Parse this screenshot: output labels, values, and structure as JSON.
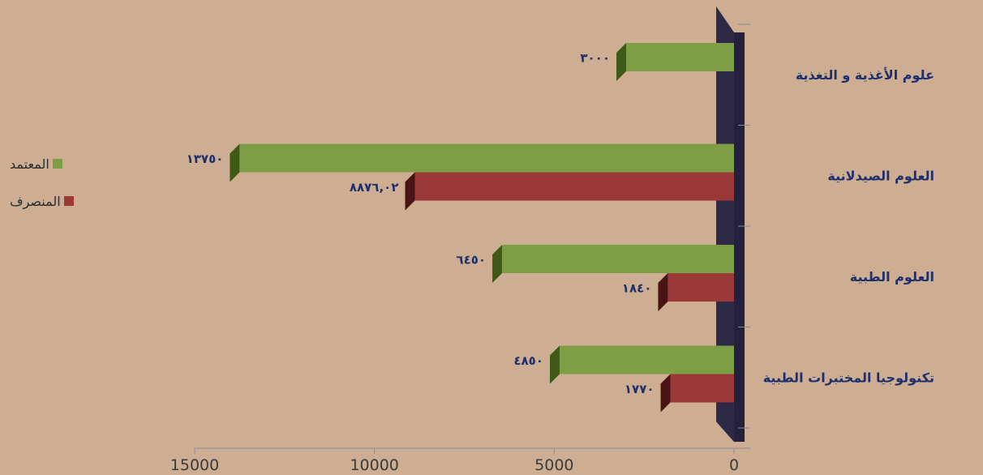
{
  "colors": {
    "approved": "#7e9e46",
    "approved_dark": "#4d6a22",
    "approved_side": "#3f5a16",
    "spent": "#9b3838",
    "spent_dark": "#5e1d1d",
    "spent_side": "#4a1414",
    "wall": "#25213d",
    "axis": "#8a8a9a"
  },
  "chart_data": {
    "type": "bar",
    "orientation": "horizontal",
    "categories": [
      "علوم الأغذية و التغذية",
      "العلوم الصيدلانية",
      "العلوم الطبية",
      "تكنولوجيا المختبرات الطبية"
    ],
    "series": [
      {
        "name": "المعتمد",
        "values": [
          3000,
          13750,
          6450,
          4850
        ],
        "labels": [
          "٣٠٠٠",
          "١٣٧٥٠",
          "٦٤٥٠",
          "٤٨٥٠"
        ]
      },
      {
        "name": "المنصرف",
        "values": [
          null,
          8876.02,
          1840,
          1770
        ],
        "labels": [
          "",
          "٨٨٧٦,٠٢",
          "١٨٤٠",
          "١٧٧٠"
        ]
      }
    ],
    "x_ticks": [
      "15000",
      "10000",
      "5000",
      "0"
    ],
    "xlim": [
      0,
      15000
    ],
    "x_reversed": true,
    "legend_position": "left",
    "grid": false
  }
}
